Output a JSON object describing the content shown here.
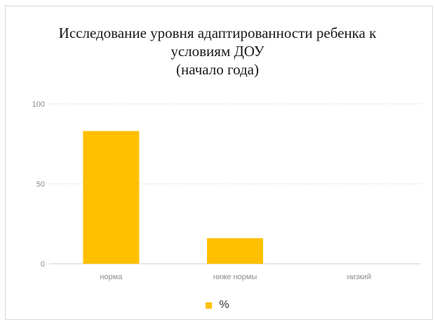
{
  "chart_data": {
    "type": "bar",
    "title": "Исследование уровня адаптированности ребенка к\nусловиям ДОУ\n(начало года)",
    "xlabel": "",
    "ylabel": "",
    "categories": [
      "норма",
      "ниже нормы",
      "низкий"
    ],
    "series": [
      {
        "name": "%",
        "values": [
          83,
          16,
          0
        ],
        "color": "#FFC000"
      }
    ],
    "yticks": [
      "0",
      "50",
      "100"
    ],
    "ylim": [
      0,
      100
    ],
    "grid": true,
    "legend_position": "bottom"
  }
}
